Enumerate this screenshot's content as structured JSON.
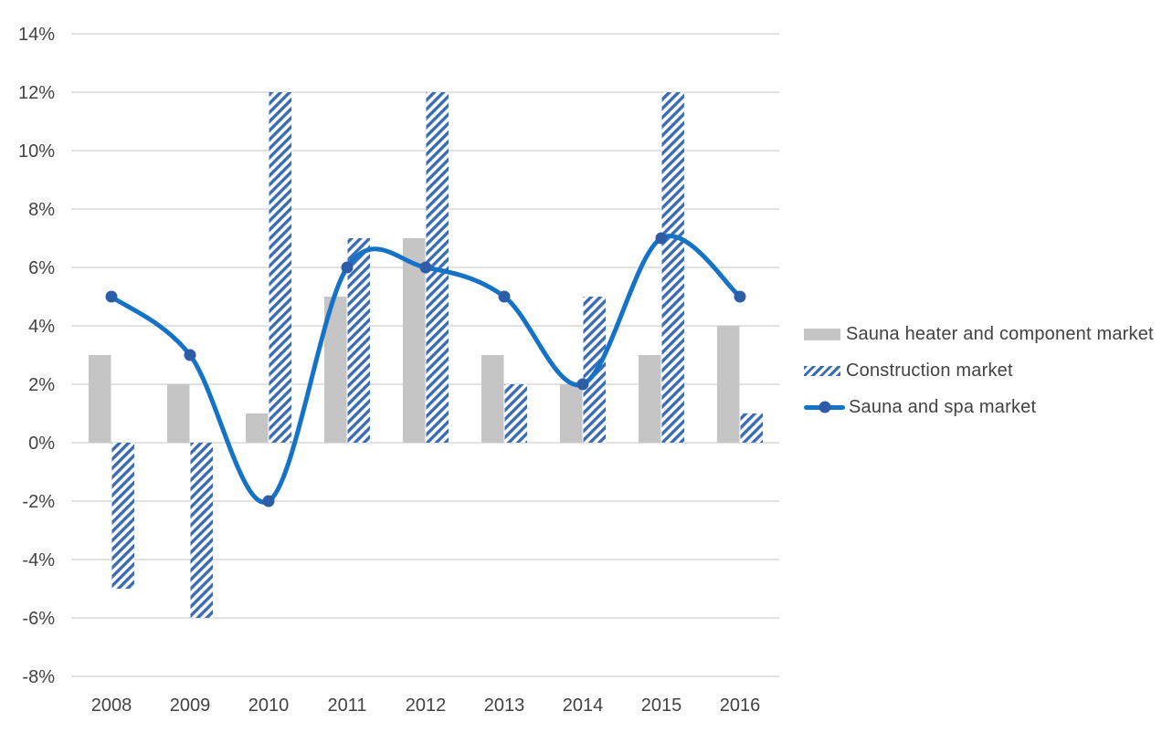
{
  "chart_data": {
    "type": "combo",
    "title": "",
    "categories": [
      "2008",
      "2009",
      "2010",
      "2011",
      "2012",
      "2013",
      "2014",
      "2015",
      "2016"
    ],
    "series": [
      {
        "name": "Sauna heater and component market",
        "type": "bar",
        "style": "solid-gray",
        "values_pct": [
          3,
          2,
          1,
          5,
          7,
          3,
          2,
          3,
          4
        ]
      },
      {
        "name": "Construction market",
        "type": "bar",
        "style": "diagonal-hatch-blue",
        "values_pct": [
          -5,
          -6,
          12,
          7,
          12,
          2,
          5,
          12,
          1
        ]
      },
      {
        "name": "Sauna and spa market",
        "type": "line",
        "style": "smooth-line-circle-markers",
        "values_pct": [
          5,
          3,
          -2,
          6,
          6,
          5,
          2,
          7,
          5
        ]
      }
    ],
    "y_axis": {
      "unit": "%",
      "min": -8,
      "max": 14,
      "step": 2,
      "tick_labels": [
        "14%",
        "12%",
        "10%",
        "8%",
        "6%",
        "4%",
        "2%",
        "0%",
        "-2%",
        "-4%",
        "-6%",
        "-8%"
      ]
    },
    "x_axis": {
      "tick_labels": [
        "2008",
        "2009",
        "2010",
        "2011",
        "2012",
        "2013",
        "2014",
        "2015",
        "2016"
      ]
    },
    "grid": true,
    "legend_position": "right-middle",
    "colors": {
      "bar_gray": "#C5C5C5",
      "hatch_blue": "#3A6CB5",
      "line_blue": "#1473C6",
      "marker_blue": "#2D5DA7",
      "grid_gray": "#D9D9D9",
      "text_gray": "#424242",
      "background": "#FFFFFF"
    }
  }
}
